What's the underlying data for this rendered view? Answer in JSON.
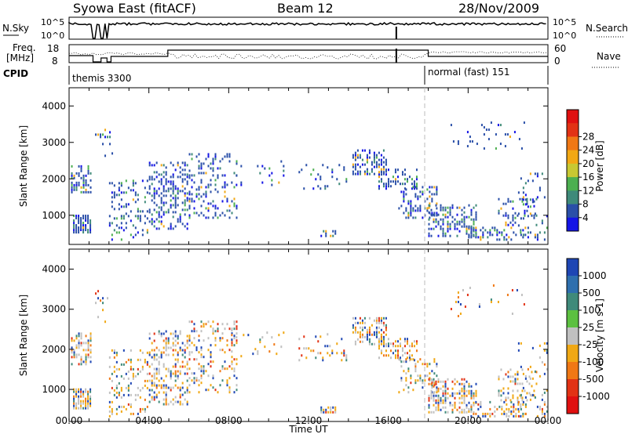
{
  "header": {
    "title": "Syowa East (fitACF)",
    "beam": "Beam 12",
    "date": "28/Nov/2009"
  },
  "panels": {
    "nsky": {
      "left_label": "N.Sky",
      "right_label": "N.Search",
      "left_ticks": [
        "10^5",
        "10^0"
      ],
      "right_ticks": [
        "10^5",
        "10^0"
      ]
    },
    "freq": {
      "left_label_1": "Freq.",
      "left_label_2": "[MHz]",
      "right_label": "Nave",
      "left_ticks": [
        "18",
        "8"
      ],
      "right_ticks": [
        "60",
        "0"
      ]
    },
    "cpid": {
      "label": "CPID",
      "modes": [
        "themis 3300",
        "normal (fast) 151"
      ]
    }
  },
  "x_axis": {
    "label": "Time UT",
    "ticks": [
      "00:00",
      "04:00",
      "08:00",
      "12:00",
      "16:00",
      "20:00",
      "00:00"
    ]
  },
  "power_plot": {
    "ylabel": "Slant Range [km]",
    "yticks": [
      "1000",
      "2000",
      "3000",
      "4000"
    ],
    "colorbar_label": "Power [dB]",
    "colorbar_ticks": [
      "4",
      "8",
      "12",
      "16",
      "20",
      "24",
      "28"
    ],
    "colors": [
      "#1414e6",
      "#2a4fa8",
      "#3f8a7a",
      "#4caf50",
      "#c8c832",
      "#f2a814",
      "#f07814",
      "#e23214",
      "#e01010"
    ]
  },
  "velocity_plot": {
    "ylabel": "Slant Range [km]",
    "yticks": [
      "1000",
      "2000",
      "3000",
      "4000"
    ],
    "colorbar_label": "Velocity [m s-1]",
    "colorbar_ticks": [
      "1000",
      "500",
      "100",
      "25",
      "-25",
      "-100",
      "-500",
      "-1000"
    ],
    "colors": [
      "#1e46b4",
      "#2e6fae",
      "#3f8a7a",
      "#5cc040",
      "#c0c0c0",
      "#f0a814",
      "#f07814",
      "#e23214",
      "#e01010"
    ]
  },
  "chart_data": {
    "type": "heatmap",
    "x_range_hours": [
      0,
      24
    ],
    "y_range_km": [
      200,
      4500
    ],
    "mode_change_hour": 18,
    "blocks": [
      {
        "t0": 0.2,
        "t1": 1.2,
        "r0": 500,
        "r1": 1000,
        "p": 0.75
      },
      {
        "t0": 0.1,
        "t1": 1.2,
        "r0": 1600,
        "r1": 2400,
        "p": 0.5
      },
      {
        "t0": 1.3,
        "t1": 2.2,
        "r0": 2600,
        "r1": 3500,
        "p": 0.08
      },
      {
        "t0": 2.0,
        "t1": 4.0,
        "r0": 300,
        "r1": 2000,
        "p": 0.2
      },
      {
        "t0": 4.0,
        "t1": 6.0,
        "r0": 600,
        "r1": 2500,
        "p": 0.35
      },
      {
        "t0": 6.0,
        "t1": 8.5,
        "r0": 900,
        "r1": 2700,
        "p": 0.25
      },
      {
        "t0": 8.0,
        "t1": 11.0,
        "r0": 1800,
        "r1": 2500,
        "p": 0.08
      },
      {
        "t0": 11.5,
        "t1": 14.0,
        "r0": 1700,
        "r1": 2400,
        "p": 0.12
      },
      {
        "t0": 12.6,
        "t1": 13.6,
        "r0": 400,
        "r1": 600,
        "p": 0.5
      },
      {
        "t0": 14.2,
        "t1": 16.0,
        "r0": 2100,
        "r1": 2800,
        "p": 0.5
      },
      {
        "t0": 15.5,
        "t1": 17.5,
        "r0": 1700,
        "r1": 2300,
        "p": 0.35
      },
      {
        "t0": 16.5,
        "t1": 18.5,
        "r0": 900,
        "r1": 1800,
        "p": 0.3
      },
      {
        "t0": 18.0,
        "t1": 20.5,
        "r0": 400,
        "r1": 1300,
        "p": 0.45
      },
      {
        "t0": 20.0,
        "t1": 23.0,
        "r0": 300,
        "r1": 700,
        "p": 0.3
      },
      {
        "t0": 21.5,
        "t1": 23.5,
        "r0": 700,
        "r1": 1500,
        "p": 0.25
      },
      {
        "t0": 19.0,
        "t1": 23.0,
        "r0": 2800,
        "r1": 3600,
        "p": 0.06
      },
      {
        "t0": 22.5,
        "t1": 24.0,
        "r0": 300,
        "r1": 2200,
        "p": 0.15
      }
    ]
  }
}
